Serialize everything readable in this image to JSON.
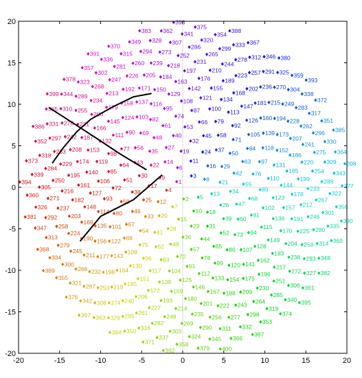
{
  "chart_data": {
    "type": "scatter",
    "title": "",
    "xlabel": "",
    "ylabel": "",
    "xlim": [
      -20,
      20
    ],
    "ylim": [
      -20,
      20
    ],
    "x_ticks": [
      -20,
      -15,
      -10,
      -5,
      0,
      5,
      10,
      15,
      20
    ],
    "y_ticks": [
      -20,
      -15,
      -10,
      -5,
      0,
      5,
      10,
      15,
      20
    ],
    "grid": "center lines at x=0 and y=0",
    "marker": "filled diamond",
    "label_rule": "every point is labelled with its index; index n sits at radius 1.0·sqrt(n) and angle n·137.508°",
    "color_rule": "point color follows the point's angle around the origin (hue wheel)",
    "series": [
      {
        "n_points": 400,
        "radius_scale": 1.0,
        "angle_step_deg": 137.508
      }
    ],
    "annotations": [
      {
        "type": "polyline",
        "color": "#000000",
        "points": [
          [
            -12.5,
            -6.5
          ],
          [
            -10.0,
            -3.5
          ],
          [
            -6.0,
            -1.5
          ],
          [
            -2.5,
            1.5
          ]
        ]
      },
      {
        "type": "polyline",
        "color": "#000000",
        "points": [
          [
            -15.9,
            2.9
          ],
          [
            -14.6,
            4.7
          ],
          [
            -12.9,
            6.7
          ],
          [
            -11.2,
            8.2
          ],
          [
            -8.5,
            9.7
          ],
          [
            -6.0,
            10.9
          ],
          [
            -3.8,
            11.3
          ]
        ]
      },
      {
        "type": "polyline",
        "color": "#000000",
        "points": [
          [
            -16.3,
            9.6
          ],
          [
            -13.3,
            7.7
          ],
          [
            -10.5,
            5.9
          ],
          [
            -7.6,
            4.0
          ],
          [
            -4.4,
            2.1
          ]
        ]
      }
    ]
  }
}
